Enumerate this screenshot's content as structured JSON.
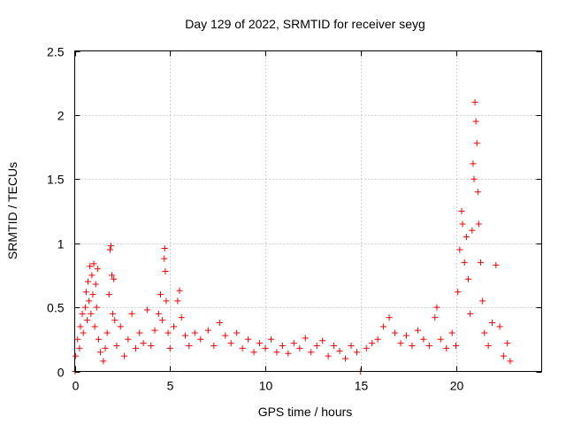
{
  "chart_data": {
    "type": "scatter",
    "title": "Day 129 of 2022, SRMTID for receiver seyg",
    "xlabel": "GPS time / hours",
    "ylabel": "SRMTID / TECUs",
    "xlim": [
      0,
      24.5
    ],
    "ylim": [
      0,
      2.5
    ],
    "grid": true,
    "marker": "plus",
    "x_ticks": [
      0,
      5,
      10,
      15,
      20
    ],
    "x_tick_labels": [
      "0",
      "5",
      "10",
      "15",
      "20"
    ],
    "y_ticks": [
      0,
      0.5,
      1,
      1.5,
      2,
      2.5
    ],
    "y_tick_labels": [
      "0",
      "0.5",
      "1",
      "1.5",
      "2",
      "2.5"
    ],
    "series": [
      {
        "name": "seyg",
        "color": "#ff0000",
        "points": [
          [
            0.02,
            0.0
          ],
          [
            0.05,
            0.12
          ],
          [
            0.15,
            0.25
          ],
          [
            0.25,
            0.18
          ],
          [
            0.3,
            0.35
          ],
          [
            0.4,
            0.45
          ],
          [
            0.45,
            0.3
          ],
          [
            0.55,
            0.5
          ],
          [
            0.6,
            0.62
          ],
          [
            0.65,
            0.4
          ],
          [
            0.7,
            0.7
          ],
          [
            0.75,
            0.55
          ],
          [
            0.8,
            0.82
          ],
          [
            0.85,
            0.45
          ],
          [
            0.9,
            0.75
          ],
          [
            0.95,
            0.6
          ],
          [
            1.0,
            0.84
          ],
          [
            1.05,
            0.35
          ],
          [
            1.1,
            0.68
          ],
          [
            1.15,
            0.5
          ],
          [
            1.2,
            0.8
          ],
          [
            1.25,
            0.25
          ],
          [
            1.35,
            0.15
          ],
          [
            1.5,
            0.08
          ],
          [
            1.6,
            0.18
          ],
          [
            1.7,
            0.3
          ],
          [
            1.8,
            0.6
          ],
          [
            1.85,
            0.95
          ],
          [
            1.9,
            0.98
          ],
          [
            1.95,
            0.75
          ],
          [
            2.0,
            0.45
          ],
          [
            2.05,
            0.72
          ],
          [
            2.1,
            0.4
          ],
          [
            2.2,
            0.2
          ],
          [
            2.4,
            0.35
          ],
          [
            2.6,
            0.12
          ],
          [
            2.8,
            0.25
          ],
          [
            3.0,
            0.45
          ],
          [
            3.2,
            0.18
          ],
          [
            3.4,
            0.3
          ],
          [
            3.6,
            0.22
          ],
          [
            3.8,
            0.48
          ],
          [
            4.0,
            0.2
          ],
          [
            4.2,
            0.32
          ],
          [
            4.4,
            0.45
          ],
          [
            4.5,
            0.6
          ],
          [
            4.6,
            0.4
          ],
          [
            4.7,
            0.88
          ],
          [
            4.72,
            0.96
          ],
          [
            4.75,
            0.78
          ],
          [
            4.8,
            0.55
          ],
          [
            4.9,
            0.3
          ],
          [
            5.0,
            0.18
          ],
          [
            5.2,
            0.35
          ],
          [
            5.4,
            0.55
          ],
          [
            5.5,
            0.63
          ],
          [
            5.6,
            0.42
          ],
          [
            5.8,
            0.28
          ],
          [
            6.0,
            0.2
          ],
          [
            6.3,
            0.3
          ],
          [
            6.6,
            0.25
          ],
          [
            7.0,
            0.32
          ],
          [
            7.3,
            0.2
          ],
          [
            7.6,
            0.38
          ],
          [
            7.9,
            0.28
          ],
          [
            8.2,
            0.22
          ],
          [
            8.5,
            0.3
          ],
          [
            8.8,
            0.18
          ],
          [
            9.1,
            0.25
          ],
          [
            9.4,
            0.15
          ],
          [
            9.7,
            0.22
          ],
          [
            10.0,
            0.18
          ],
          [
            10.3,
            0.25
          ],
          [
            10.6,
            0.15
          ],
          [
            10.9,
            0.2
          ],
          [
            11.2,
            0.14
          ],
          [
            11.5,
            0.22
          ],
          [
            11.8,
            0.18
          ],
          [
            12.1,
            0.26
          ],
          [
            12.4,
            0.15
          ],
          [
            12.7,
            0.2
          ],
          [
            13.0,
            0.24
          ],
          [
            13.3,
            0.12
          ],
          [
            13.6,
            0.2
          ],
          [
            13.9,
            0.16
          ],
          [
            14.2,
            0.1
          ],
          [
            14.5,
            0.2
          ],
          [
            14.8,
            0.15
          ],
          [
            15.0,
            0.0
          ],
          [
            15.3,
            0.18
          ],
          [
            15.6,
            0.22
          ],
          [
            15.9,
            0.25
          ],
          [
            16.2,
            0.35
          ],
          [
            16.5,
            0.42
          ],
          [
            16.8,
            0.3
          ],
          [
            17.1,
            0.22
          ],
          [
            17.4,
            0.28
          ],
          [
            17.7,
            0.2
          ],
          [
            18.0,
            0.32
          ],
          [
            18.3,
            0.25
          ],
          [
            18.6,
            0.2
          ],
          [
            18.9,
            0.42
          ],
          [
            19.0,
            0.5
          ],
          [
            19.2,
            0.25
          ],
          [
            19.5,
            0.18
          ],
          [
            19.8,
            0.3
          ],
          [
            20.0,
            0.2
          ],
          [
            20.1,
            0.62
          ],
          [
            20.2,
            0.95
          ],
          [
            20.3,
            1.25
          ],
          [
            20.35,
            1.15
          ],
          [
            20.45,
            0.85
          ],
          [
            20.55,
            1.05
          ],
          [
            20.65,
            0.72
          ],
          [
            20.75,
            0.45
          ],
          [
            20.85,
            1.1
          ],
          [
            20.9,
            1.62
          ],
          [
            20.95,
            1.5
          ],
          [
            21.0,
            2.1
          ],
          [
            21.05,
            1.95
          ],
          [
            21.1,
            1.78
          ],
          [
            21.15,
            1.4
          ],
          [
            21.2,
            1.15
          ],
          [
            21.3,
            0.85
          ],
          [
            21.4,
            0.55
          ],
          [
            21.5,
            0.3
          ],
          [
            21.7,
            0.2
          ],
          [
            21.9,
            0.38
          ],
          [
            22.1,
            0.83
          ],
          [
            22.3,
            0.35
          ],
          [
            22.5,
            0.12
          ],
          [
            22.7,
            0.22
          ],
          [
            22.85,
            0.08
          ]
        ]
      }
    ]
  }
}
